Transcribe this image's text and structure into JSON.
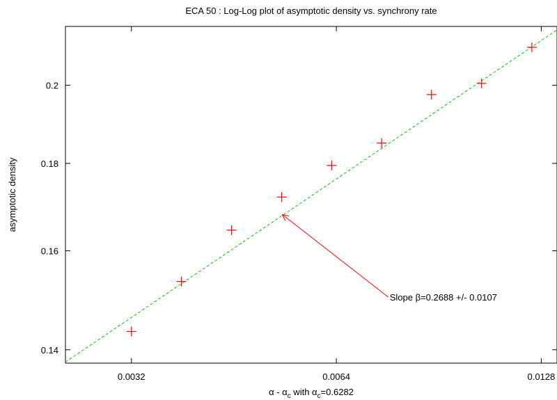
{
  "chart_data": {
    "type": "scatter",
    "title": "ECA 50 : Log-Log plot of asymptotic density vs. synchrony rate",
    "xlabel": {
      "prefix": "α - α",
      "sub1": "c",
      "mid": " with α",
      "sub2": "c",
      "suffix": "=0.6282"
    },
    "ylabel": "asymptotic density",
    "x_scale": "log",
    "y_scale": "log",
    "xlim": [
      0.00256,
      0.0135
    ],
    "ylim": [
      0.1375,
      0.2165
    ],
    "x_ticks": [
      0.0032,
      0.0064,
      0.0128
    ],
    "x_tick_labels": [
      "0.0032",
      "0.0064",
      "0.0128"
    ],
    "y_ticks": [
      0.14,
      0.16,
      0.18,
      0.2
    ],
    "y_tick_labels": [
      "0.14",
      "0.16",
      "0.18",
      "0.2"
    ],
    "grid": false,
    "points": {
      "color": "#ff0000",
      "x": [
        0.0032,
        0.00379,
        0.00449,
        0.00532,
        0.0063,
        0.00746,
        0.00883,
        0.01046,
        0.0124
      ],
      "y": [
        0.1435,
        0.1535,
        0.1645,
        0.172,
        0.1795,
        0.185,
        0.1975,
        0.2005,
        0.2105
      ]
    },
    "fit_line": {
      "color": "#00cc00",
      "style": "dashed",
      "x": [
        0.00256,
        0.0135
      ],
      "y": [
        0.1377,
        0.2155
      ]
    },
    "annotation": {
      "text": "Slope β=0.2688 +/- 0.0107",
      "color": "#ff0000",
      "arrow_to": [
        0.00533,
        0.168
      ],
      "arrow_from": [
        0.00763,
        0.1503
      ]
    }
  }
}
